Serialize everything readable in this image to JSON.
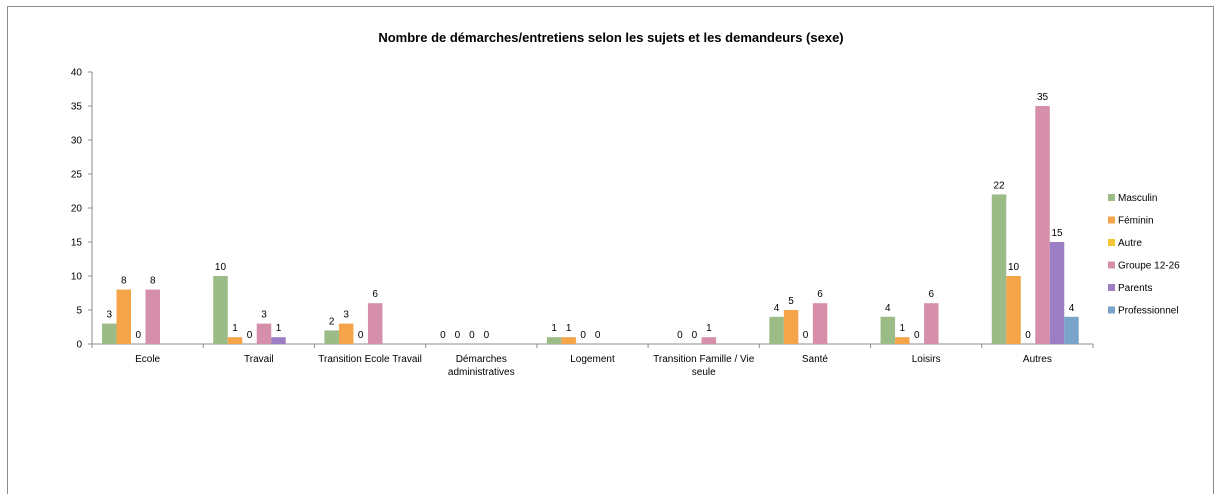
{
  "chart_data": {
    "type": "bar",
    "title": "Nombre de démarches/entretiens selon les sujets et les demandeurs (sexe)",
    "xlabel": "",
    "ylabel": "",
    "ylim": [
      0,
      40
    ],
    "yticks": [
      0,
      5,
      10,
      15,
      20,
      25,
      30,
      35,
      40
    ],
    "grid": false,
    "legend_position": "right",
    "categories": [
      [
        "Ecole"
      ],
      [
        "Travail"
      ],
      [
        "Transition Ecole Travail"
      ],
      [
        "Démarches",
        "administratives"
      ],
      [
        "Logement"
      ],
      [
        "Transition Famille / Vie",
        "seule"
      ],
      [
        "Santé"
      ],
      [
        "Loisirs"
      ],
      [
        "Autres"
      ]
    ],
    "series": [
      {
        "name": "Masculin",
        "color": "#9bbb87",
        "values": [
          3,
          10,
          2,
          0,
          1,
          null,
          4,
          4,
          22
        ]
      },
      {
        "name": "Féminin",
        "color": "#f5a44a",
        "values": [
          8,
          1,
          3,
          0,
          1,
          0,
          5,
          1,
          10
        ]
      },
      {
        "name": "Autre",
        "color": "#f3c531",
        "values": [
          0,
          0,
          0,
          0,
          0,
          0,
          0,
          0,
          0
        ]
      },
      {
        "name": "Groupe 12-26",
        "color": "#d58fab",
        "values": [
          8,
          3,
          6,
          0,
          0,
          1,
          6,
          6,
          35
        ]
      },
      {
        "name": "Parents",
        "color": "#9b7ec4",
        "values": [
          null,
          1,
          null,
          null,
          null,
          null,
          null,
          null,
          15
        ]
      },
      {
        "name": "Professionnel",
        "color": "#7aa3c9",
        "values": [
          null,
          null,
          null,
          null,
          null,
          null,
          null,
          null,
          4
        ]
      }
    ]
  }
}
